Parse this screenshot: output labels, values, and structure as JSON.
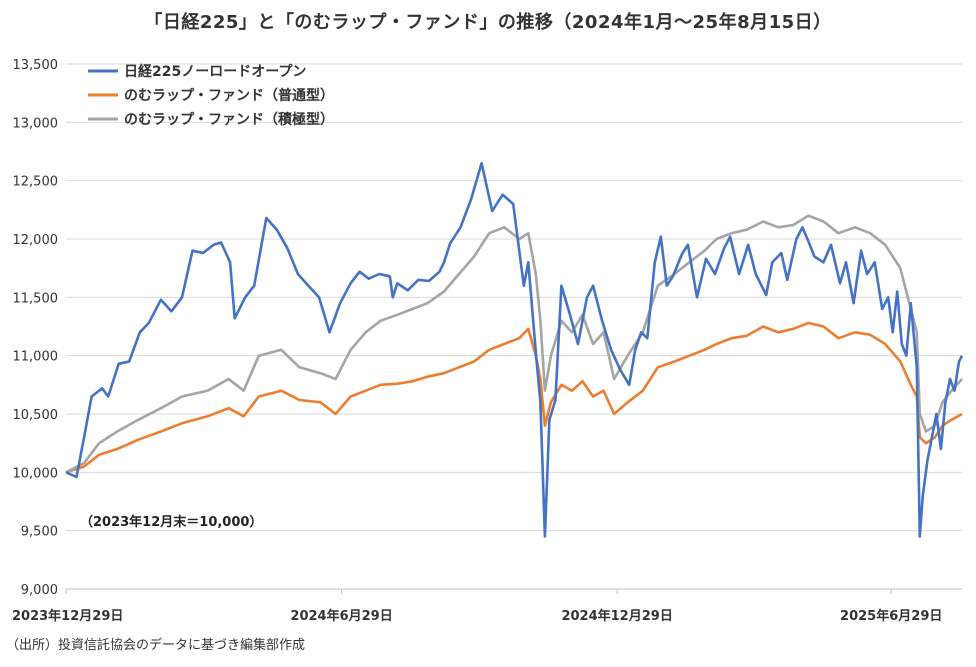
{
  "chart_data": {
    "type": "line",
    "title": "「日経225」と「のむラップ・ファンド」の推移（2024年1月〜25年8月15日）",
    "xlabel": "",
    "ylabel": "",
    "x_ticks": [
      "2023年12月29日",
      "2024年6月29日",
      "2024年12月29日",
      "2025年6月29日"
    ],
    "y_ticks": [
      "9,000",
      "9,500",
      "10,000",
      "10,500",
      "11,000",
      "11,500",
      "12,000",
      "12,500",
      "13,000",
      "13,500"
    ],
    "ylim": [
      9000,
      13500
    ],
    "xlim": [
      "2023-12-29",
      "2025-08-15"
    ],
    "grid": "horizontal",
    "legend_position": "top-left",
    "annotation": "（2023年12月末＝10,000）",
    "series": [
      {
        "name": "日経225ノーロードオープン",
        "color": "#4472C4",
        "points": [
          [
            "2023-12-29",
            10000
          ],
          [
            "2024-01-05",
            9960
          ],
          [
            "2024-01-10",
            10300
          ],
          [
            "2024-01-15",
            10650
          ],
          [
            "2024-01-22",
            10720
          ],
          [
            "2024-01-26",
            10650
          ],
          [
            "2024-02-02",
            10930
          ],
          [
            "2024-02-09",
            10950
          ],
          [
            "2024-02-16",
            11200
          ],
          [
            "2024-02-22",
            11280
          ],
          [
            "2024-03-01",
            11480
          ],
          [
            "2024-03-08",
            11380
          ],
          [
            "2024-03-15",
            11500
          ],
          [
            "2024-03-22",
            11900
          ],
          [
            "2024-03-29",
            11880
          ],
          [
            "2024-04-05",
            11950
          ],
          [
            "2024-04-10",
            11970
          ],
          [
            "2024-04-16",
            11800
          ],
          [
            "2024-04-19",
            11320
          ],
          [
            "2024-04-26",
            11500
          ],
          [
            "2024-05-02",
            11600
          ],
          [
            "2024-05-10",
            12180
          ],
          [
            "2024-05-17",
            12080
          ],
          [
            "2024-05-24",
            11920
          ],
          [
            "2024-05-31",
            11700
          ],
          [
            "2024-06-07",
            11600
          ],
          [
            "2024-06-14",
            11500
          ],
          [
            "2024-06-21",
            11200
          ],
          [
            "2024-06-28",
            11450
          ],
          [
            "2024-07-05",
            11620
          ],
          [
            "2024-07-11",
            11720
          ],
          [
            "2024-07-17",
            11660
          ],
          [
            "2024-07-24",
            11700
          ],
          [
            "2024-07-31",
            11680
          ],
          [
            "2024-08-02",
            11500
          ],
          [
            "2024-08-05",
            11620
          ],
          [
            "2024-08-12",
            11560
          ],
          [
            "2024-08-19",
            11650
          ],
          [
            "2024-08-26",
            11640
          ],
          [
            "2024-09-02",
            11720
          ],
          [
            "2024-09-05",
            11800
          ],
          [
            "2024-09-09",
            11960
          ],
          [
            "2024-09-16",
            12100
          ],
          [
            "2024-09-23",
            12340
          ],
          [
            "2024-09-30",
            12650
          ],
          [
            "2024-10-07",
            12240
          ],
          [
            "2024-10-14",
            12380
          ],
          [
            "2024-10-21",
            12300
          ],
          [
            "2024-10-28",
            11600
          ],
          [
            "2024-10-31",
            11800
          ],
          [
            "2024-11-05",
            11030
          ],
          [
            "2024-11-08",
            10600
          ],
          [
            "2024-11-11",
            9450
          ],
          [
            "2024-11-14",
            10450
          ],
          [
            "2024-11-18",
            10620
          ],
          [
            "2024-11-22",
            11600
          ],
          [
            "2024-11-27",
            11380
          ],
          [
            "2024-12-03",
            11100
          ],
          [
            "2024-12-09",
            11500
          ],
          [
            "2024-12-13",
            11600
          ],
          [
            "2024-12-19",
            11300
          ],
          [
            "2024-12-25",
            11050
          ],
          [
            "2024-12-31",
            10880
          ],
          [
            "2025-01-06",
            10750
          ],
          [
            "2025-01-10",
            11050
          ],
          [
            "2025-01-14",
            11200
          ],
          [
            "2025-01-18",
            11150
          ],
          [
            "2025-01-23",
            11800
          ],
          [
            "2025-01-27",
            12020
          ],
          [
            "2025-01-31",
            11600
          ],
          [
            "2025-02-04",
            11680
          ],
          [
            "2025-02-10",
            11870
          ],
          [
            "2025-02-14",
            11950
          ],
          [
            "2025-02-20",
            11500
          ],
          [
            "2025-02-26",
            11830
          ],
          [
            "2025-03-04",
            11700
          ],
          [
            "2025-03-10",
            11920
          ],
          [
            "2025-03-14",
            12020
          ],
          [
            "2025-03-20",
            11700
          ],
          [
            "2025-03-26",
            11950
          ],
          [
            "2025-03-31",
            11700
          ],
          [
            "2025-04-07",
            11520
          ],
          [
            "2025-04-11",
            11800
          ],
          [
            "2025-04-17",
            11880
          ],
          [
            "2025-04-21",
            11650
          ],
          [
            "2025-04-27",
            12000
          ],
          [
            "2025-05-01",
            12100
          ],
          [
            "2025-05-05",
            11980
          ],
          [
            "2025-05-09",
            11850
          ],
          [
            "2025-05-15",
            11800
          ],
          [
            "2025-05-20",
            11950
          ],
          [
            "2025-05-26",
            11620
          ],
          [
            "2025-05-30",
            11800
          ],
          [
            "2025-06-04",
            11450
          ],
          [
            "2025-06-09",
            11900
          ],
          [
            "2025-06-13",
            11700
          ],
          [
            "2025-06-18",
            11800
          ],
          [
            "2025-06-23",
            11400
          ],
          [
            "2025-06-27",
            11500
          ],
          [
            "2025-06-30",
            11200
          ],
          [
            "2025-07-03",
            11550
          ],
          [
            "2025-07-06",
            11100
          ],
          [
            "2025-07-09",
            11000
          ],
          [
            "2025-07-12",
            11450
          ],
          [
            "2025-07-16",
            10900
          ],
          [
            "2025-07-18",
            9450
          ],
          [
            "2025-07-20",
            9800
          ],
          [
            "2025-07-23",
            10100
          ],
          [
            "2025-07-26",
            10300
          ],
          [
            "2025-07-29",
            10500
          ],
          [
            "2025-08-01",
            10200
          ],
          [
            "2025-08-04",
            10600
          ],
          [
            "2025-08-07",
            10800
          ],
          [
            "2025-08-10",
            10700
          ],
          [
            "2025-08-13",
            10950
          ],
          [
            "2025-08-15",
            11000
          ]
        ]
      },
      {
        "name": "のむラップ・ファンド（普通型）",
        "color": "#ED7D31",
        "points": [
          [
            "2023-12-29",
            10000
          ],
          [
            "2024-01-10",
            10050
          ],
          [
            "2024-01-20",
            10150
          ],
          [
            "2024-02-01",
            10200
          ],
          [
            "2024-02-15",
            10280
          ],
          [
            "2024-03-01",
            10350
          ],
          [
            "2024-03-15",
            10420
          ],
          [
            "2024-04-01",
            10480
          ],
          [
            "2024-04-15",
            10550
          ],
          [
            "2024-04-25",
            10480
          ],
          [
            "2024-05-05",
            10650
          ],
          [
            "2024-05-20",
            10700
          ],
          [
            "2024-06-01",
            10620
          ],
          [
            "2024-06-15",
            10600
          ],
          [
            "2024-06-25",
            10500
          ],
          [
            "2024-07-05",
            10650
          ],
          [
            "2024-07-15",
            10700
          ],
          [
            "2024-07-25",
            10750
          ],
          [
            "2024-08-05",
            10760
          ],
          [
            "2024-08-15",
            10780
          ],
          [
            "2024-08-25",
            10820
          ],
          [
            "2024-09-05",
            10850
          ],
          [
            "2024-09-15",
            10900
          ],
          [
            "2024-09-25",
            10950
          ],
          [
            "2024-10-05",
            11050
          ],
          [
            "2024-10-15",
            11100
          ],
          [
            "2024-10-25",
            11150
          ],
          [
            "2024-10-31",
            11230
          ],
          [
            "2024-11-05",
            11000
          ],
          [
            "2024-11-08",
            10800
          ],
          [
            "2024-11-11",
            10400
          ],
          [
            "2024-11-15",
            10600
          ],
          [
            "2024-11-22",
            10750
          ],
          [
            "2024-11-29",
            10700
          ],
          [
            "2024-12-06",
            10780
          ],
          [
            "2024-12-13",
            10650
          ],
          [
            "2024-12-20",
            10700
          ],
          [
            "2024-12-27",
            10500
          ],
          [
            "2025-01-05",
            10600
          ],
          [
            "2025-01-15",
            10700
          ],
          [
            "2025-01-25",
            10900
          ],
          [
            "2025-02-05",
            10950
          ],
          [
            "2025-02-15",
            11000
          ],
          [
            "2025-02-25",
            11050
          ],
          [
            "2025-03-05",
            11100
          ],
          [
            "2025-03-15",
            11150
          ],
          [
            "2025-03-25",
            11170
          ],
          [
            "2025-04-05",
            11250
          ],
          [
            "2025-04-15",
            11200
          ],
          [
            "2025-04-25",
            11230
          ],
          [
            "2025-05-05",
            11280
          ],
          [
            "2025-05-15",
            11250
          ],
          [
            "2025-05-25",
            11150
          ],
          [
            "2025-06-05",
            11200
          ],
          [
            "2025-06-15",
            11180
          ],
          [
            "2025-06-25",
            11100
          ],
          [
            "2025-07-05",
            10950
          ],
          [
            "2025-07-12",
            10750
          ],
          [
            "2025-07-16",
            10650
          ],
          [
            "2025-07-18",
            10300
          ],
          [
            "2025-07-22",
            10250
          ],
          [
            "2025-07-28",
            10300
          ],
          [
            "2025-08-02",
            10400
          ],
          [
            "2025-08-08",
            10450
          ],
          [
            "2025-08-15",
            10500
          ]
        ]
      },
      {
        "name": "のむラップ・ファンド（積極型）",
        "color": "#A5A5A5",
        "points": [
          [
            "2023-12-29",
            10000
          ],
          [
            "2024-01-10",
            10080
          ],
          [
            "2024-01-20",
            10250
          ],
          [
            "2024-02-01",
            10350
          ],
          [
            "2024-02-15",
            10450
          ],
          [
            "2024-03-01",
            10550
          ],
          [
            "2024-03-15",
            10650
          ],
          [
            "2024-04-01",
            10700
          ],
          [
            "2024-04-15",
            10800
          ],
          [
            "2024-04-25",
            10700
          ],
          [
            "2024-05-05",
            11000
          ],
          [
            "2024-05-20",
            11050
          ],
          [
            "2024-06-01",
            10900
          ],
          [
            "2024-06-15",
            10850
          ],
          [
            "2024-06-25",
            10800
          ],
          [
            "2024-07-05",
            11050
          ],
          [
            "2024-07-15",
            11200
          ],
          [
            "2024-07-25",
            11300
          ],
          [
            "2024-08-05",
            11350
          ],
          [
            "2024-08-15",
            11400
          ],
          [
            "2024-08-25",
            11450
          ],
          [
            "2024-09-05",
            11550
          ],
          [
            "2024-09-15",
            11700
          ],
          [
            "2024-09-25",
            11850
          ],
          [
            "2024-10-05",
            12050
          ],
          [
            "2024-10-15",
            12100
          ],
          [
            "2024-10-25",
            12000
          ],
          [
            "2024-10-31",
            12050
          ],
          [
            "2024-11-05",
            11700
          ],
          [
            "2024-11-08",
            11300
          ],
          [
            "2024-11-11",
            10700
          ],
          [
            "2024-11-15",
            11000
          ],
          [
            "2024-11-22",
            11300
          ],
          [
            "2024-11-29",
            11200
          ],
          [
            "2024-12-06",
            11350
          ],
          [
            "2024-12-13",
            11100
          ],
          [
            "2024-12-20",
            11200
          ],
          [
            "2024-12-27",
            10800
          ],
          [
            "2025-01-05",
            11000
          ],
          [
            "2025-01-15",
            11200
          ],
          [
            "2025-01-25",
            11600
          ],
          [
            "2025-02-05",
            11700
          ],
          [
            "2025-02-15",
            11800
          ],
          [
            "2025-02-25",
            11900
          ],
          [
            "2025-03-05",
            12000
          ],
          [
            "2025-03-15",
            12050
          ],
          [
            "2025-03-25",
            12080
          ],
          [
            "2025-04-05",
            12150
          ],
          [
            "2025-04-15",
            12100
          ],
          [
            "2025-04-25",
            12120
          ],
          [
            "2025-05-05",
            12200
          ],
          [
            "2025-05-15",
            12150
          ],
          [
            "2025-05-25",
            12050
          ],
          [
            "2025-06-05",
            12100
          ],
          [
            "2025-06-15",
            12050
          ],
          [
            "2025-06-25",
            11950
          ],
          [
            "2025-07-05",
            11750
          ],
          [
            "2025-07-12",
            11400
          ],
          [
            "2025-07-16",
            11200
          ],
          [
            "2025-07-18",
            10500
          ],
          [
            "2025-07-22",
            10350
          ],
          [
            "2025-07-28",
            10400
          ],
          [
            "2025-08-02",
            10600
          ],
          [
            "2025-08-08",
            10700
          ],
          [
            "2025-08-15",
            10800
          ]
        ]
      }
    ]
  },
  "source_note": "（出所）投資信託協会のデータに基づき編集部作成"
}
